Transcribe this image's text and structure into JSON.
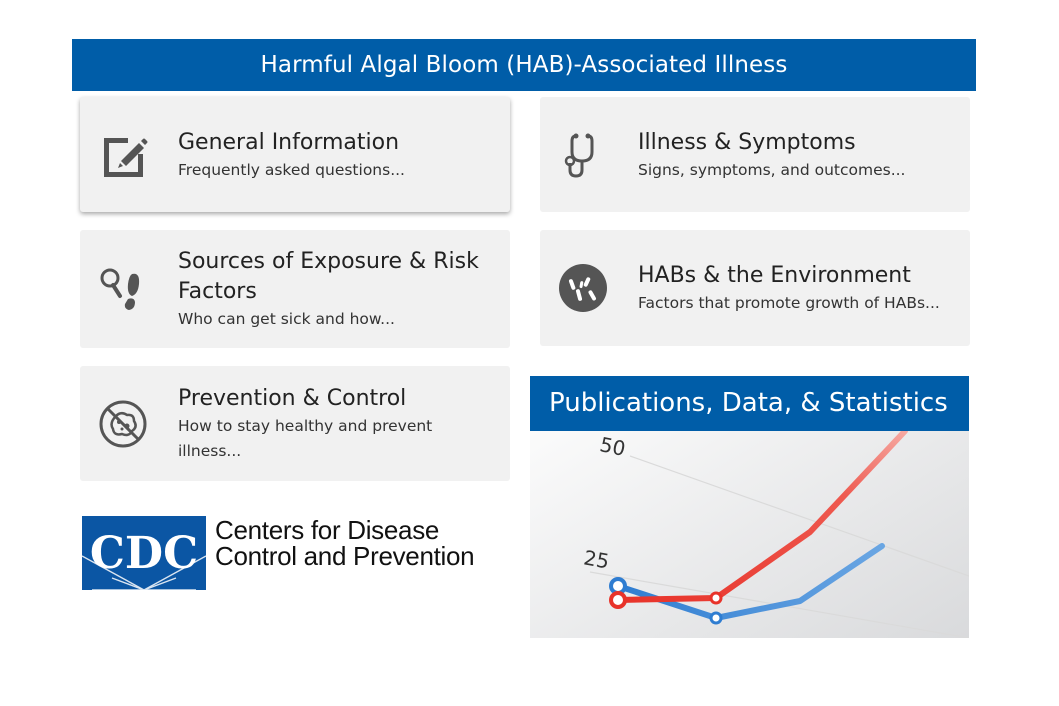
{
  "banner": {
    "title": "Harmful Algal Bloom (HAB)-Associated Illness"
  },
  "cards": [
    {
      "title": "General Information",
      "desc": "Frequently asked questions...",
      "icon": "edit-icon"
    },
    {
      "title": "Illness & Symptoms",
      "desc": "Signs, symptoms, and outcomes...",
      "icon": "stethoscope-icon"
    },
    {
      "title": "Sources of Exposure & Risk Factors",
      "desc": "Who can get sick and how...",
      "icon": "search-footprint-icon"
    },
    {
      "title": "HABs & the Environment",
      "desc": "Factors that promote growth of HABs...",
      "icon": "bacteria-icon"
    },
    {
      "title": "Prevention & Control",
      "desc": "How to stay healthy and prevent illness...",
      "icon": "no-germs-icon"
    }
  ],
  "publications": {
    "title": "Publications, Data, & Statistics",
    "chart_ticks": [
      "50",
      "25"
    ]
  },
  "cdc": {
    "logo_text": "CDC",
    "name_line1": "Centers for Disease",
    "name_line2": "Control and Prevention"
  },
  "colors": {
    "brand_blue": "#005da8",
    "card_bg": "#f1f1f1",
    "icon_gray": "#555555",
    "chart_red": "#e8332a",
    "chart_blue": "#2f7dd1"
  }
}
